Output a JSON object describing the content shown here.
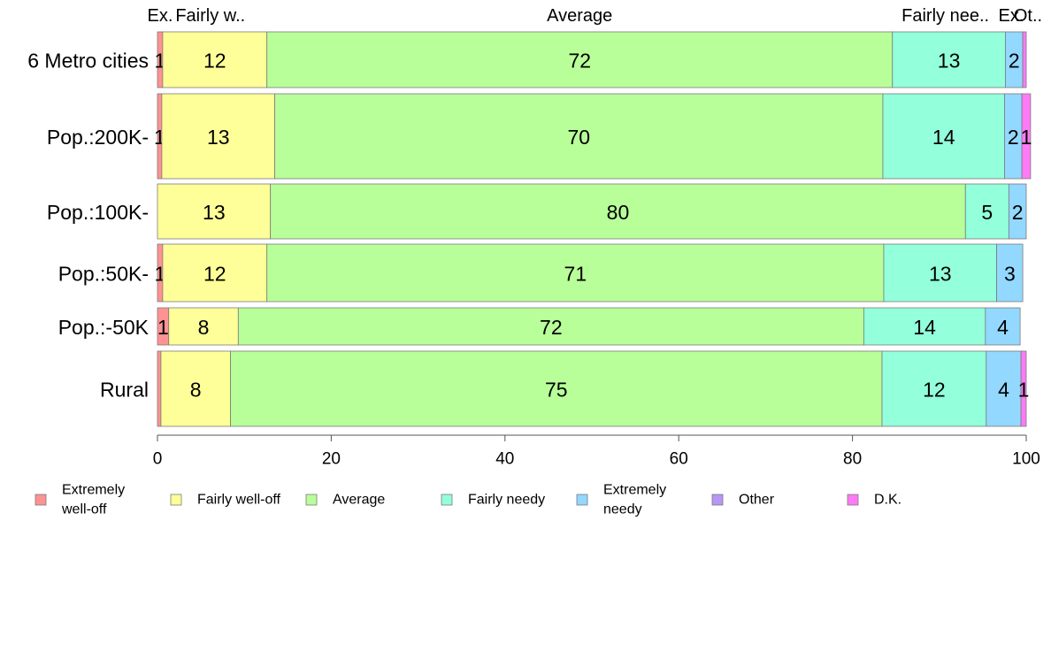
{
  "chart_data": {
    "type": "bar",
    "orientation": "horizontal",
    "stacked": true,
    "categories": [
      "6 Metro cities",
      "Pop.:200K-",
      "Pop.:100K-",
      "Pop.:50K-",
      "Pop.:-50K",
      "Rural"
    ],
    "series": [
      {
        "name": "Extremely well-off",
        "values": [
          0.6,
          0.5,
          0,
          0.6,
          1.3,
          0.4
        ],
        "labels": [
          "1",
          "1",
          "",
          "1",
          "1",
          ""
        ],
        "color": "#ff9393"
      },
      {
        "name": "Fairly well-off",
        "values": [
          12,
          13,
          13,
          12,
          8,
          8
        ],
        "labels": [
          "12",
          "13",
          "13",
          "12",
          "8",
          "8"
        ],
        "color": "#ffff99"
      },
      {
        "name": "Average",
        "values": [
          72,
          70,
          80,
          71,
          72,
          75
        ],
        "labels": [
          "72",
          "70",
          "80",
          "71",
          "72",
          "75"
        ],
        "color": "#b8ff99"
      },
      {
        "name": "Fairly needy",
        "values": [
          13,
          14,
          5,
          13,
          14,
          12
        ],
        "labels": [
          "13",
          "14",
          "5",
          "13",
          "14",
          "12"
        ],
        "color": "#93ffdb"
      },
      {
        "name": "Extremely needy",
        "values": [
          2,
          2,
          2,
          3,
          4,
          4
        ],
        "labels": [
          "2",
          "2",
          "2",
          "3",
          "4",
          "4"
        ],
        "color": "#93d8ff"
      },
      {
        "name": "Other",
        "values": [
          0,
          0,
          0,
          0,
          0,
          0
        ],
        "labels": [
          "",
          "",
          "",
          "",
          "",
          ""
        ],
        "color": "#b796f5"
      },
      {
        "name": "D.K.",
        "values": [
          0.4,
          1,
          0,
          0,
          0,
          0.6
        ],
        "labels": [
          "",
          "1",
          "",
          "",
          "",
          "1"
        ],
        "color": "#ff7af7"
      }
    ],
    "top_labels": [
      "Ex.",
      "Fairly w..",
      "Average",
      "Fairly nee..",
      "Ex.",
      "Ot.."
    ],
    "xlim": [
      0,
      100
    ],
    "x_ticks": [
      0,
      20,
      40,
      60,
      80,
      100
    ],
    "legend_labels": [
      [
        "Extremely",
        "well-off"
      ],
      [
        "Fairly well-off"
      ],
      [
        "Average"
      ],
      [
        "Fairly needy"
      ],
      [
        "Extremely",
        "needy"
      ],
      [
        "Other"
      ],
      [
        "D.K."
      ]
    ],
    "legend_position": "bottom",
    "grid": false
  }
}
